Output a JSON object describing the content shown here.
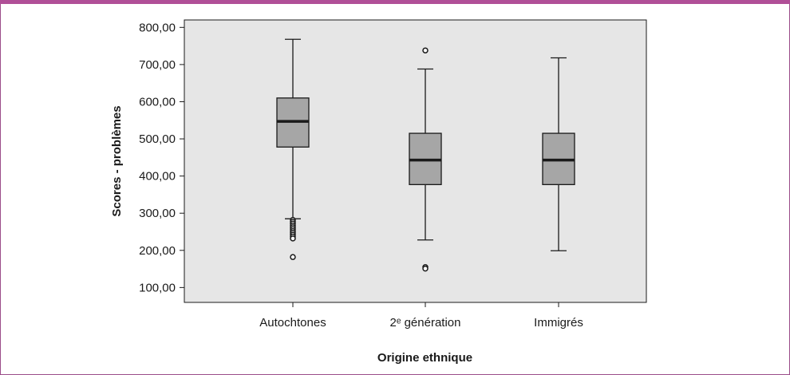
{
  "colors": {
    "frame_border": "#9b4d8a",
    "top_bar": "#b04f97",
    "plot_background": "#e6e6e6",
    "box_fill": "#a6a6a6",
    "line": "#1a1a1a"
  },
  "chart_data": {
    "type": "boxplot",
    "title": "",
    "xlabel": "Origine ethnique",
    "ylabel": "Scores - problèmes",
    "ylim": [
      60,
      820
    ],
    "yticks": [
      100,
      200,
      300,
      400,
      500,
      600,
      700,
      800
    ],
    "ytick_labels": [
      "100,00",
      "200,00",
      "300,00",
      "400,00",
      "500,00",
      "600,00",
      "700,00",
      "800,00"
    ],
    "categories": [
      "Autochtones",
      "2ᵉ génération",
      "Immigrés"
    ],
    "grid": false,
    "legend": "none",
    "boxes": [
      {
        "category": "Autochtones",
        "whisker_low": 285,
        "q1": 478,
        "median": 547,
        "q3": 610,
        "whisker_high": 768,
        "outliers": [
          282,
          277,
          272,
          267,
          262,
          257,
          252,
          247,
          242,
          237,
          232,
          182
        ]
      },
      {
        "category": "2ᵉ génération",
        "whisker_low": 228,
        "q1": 377,
        "median": 443,
        "q3": 515,
        "whisker_high": 688,
        "outliers": [
          738,
          155,
          151
        ]
      },
      {
        "category": "Immigrés",
        "whisker_low": 199,
        "q1": 377,
        "median": 443,
        "q3": 515,
        "whisker_high": 718,
        "outliers": []
      }
    ]
  }
}
